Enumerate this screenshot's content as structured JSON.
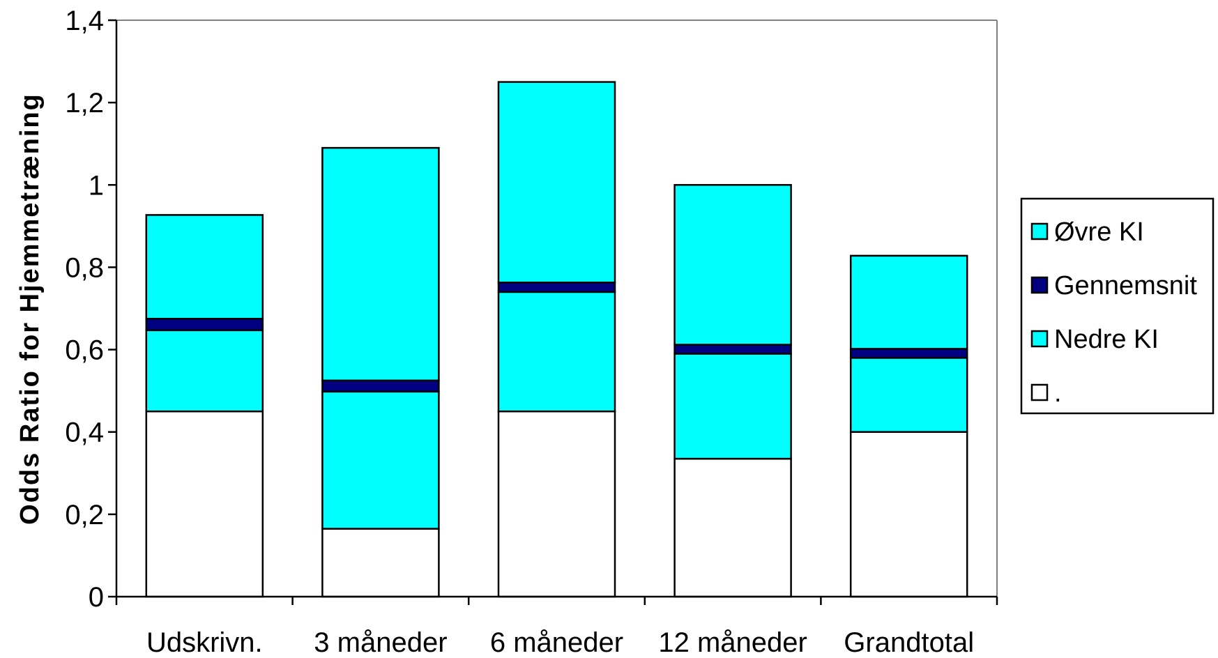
{
  "chart_data": {
    "type": "bar",
    "stacked": true,
    "title": "",
    "xlabel": "",
    "ylabel": "Odds Ratio for Hjemmetræning",
    "ylim": [
      0,
      1.4
    ],
    "y_ticks": [
      "0",
      "0,2",
      "0,4",
      "0,6",
      "0,8",
      "1",
      "1,2",
      "1,4"
    ],
    "y_tick_values": [
      0,
      0.2,
      0.4,
      0.6,
      0.8,
      1.0,
      1.2,
      1.4
    ],
    "categories": [
      "Udskrivn.",
      "3 måneder",
      "6 måneder",
      "12 måneder",
      "Grandtotal"
    ],
    "series": [
      {
        "name": ".",
        "values": [
          0.45,
          0.165,
          0.45,
          0.335,
          0.4
        ],
        "color": "#ffffff"
      },
      {
        "name": "Nedre KI",
        "values": [
          0.197,
          0.333,
          0.29,
          0.255,
          0.18
        ],
        "color": "#00ffff"
      },
      {
        "name": "Gennemsnit",
        "values": [
          0.028,
          0.027,
          0.023,
          0.022,
          0.022
        ],
        "color": "#000080"
      },
      {
        "name": "Øvre KI",
        "values": [
          0.252,
          0.565,
          0.487,
          0.388,
          0.226
        ],
        "color": "#00ffff"
      }
    ],
    "legend": {
      "position": "right",
      "entries": [
        "Øvre KI",
        "Gennemsnit",
        "Nedre KI",
        "."
      ]
    },
    "grid": false,
    "plot_border_color": "#808080"
  }
}
